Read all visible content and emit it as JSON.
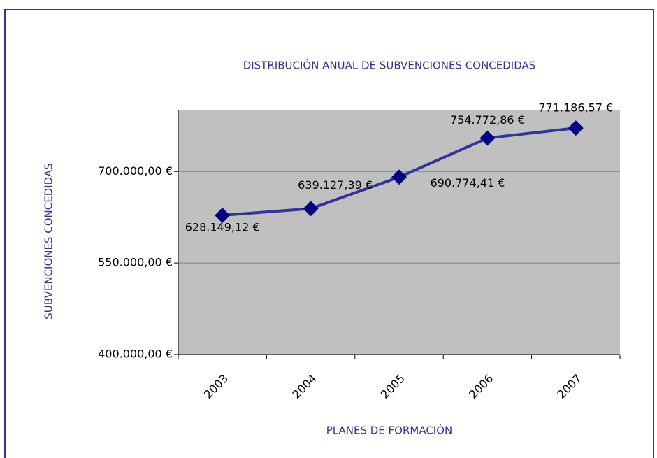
{
  "chart_data": {
    "type": "line",
    "title": "DISTRIBUCIÓN ANUAL DE SUBVENCIONES CONCEDIDAS",
    "x_label": "PLANES DE FORMACIÓN",
    "y_label": "SUBVENCIONES CONCEDIDAS",
    "categories": [
      "2003",
      "2004",
      "2005",
      "2006",
      "2007"
    ],
    "series": [
      {
        "name": "SUBVENCIONES CONCEDIDAS",
        "color": "#333399",
        "marker_color": "#000080",
        "values": [
          628149.12,
          639127.39,
          690774.41,
          754772.86,
          771186.57
        ],
        "value_labels": [
          "628.149,12 €",
          "639.127,39 €",
          "690.774,41 €",
          "754.772,86 €",
          "771.186,57 €"
        ]
      }
    ],
    "ylim": [
      400000,
      800000
    ],
    "yticks": [
      {
        "value": 400000,
        "label": "400.000,00 €"
      },
      {
        "value": 550000,
        "label": "550.000,00 €"
      },
      {
        "value": 700000,
        "label": "700.000,00 €"
      }
    ],
    "grid": true,
    "plot_background": "#c0c0c0"
  }
}
